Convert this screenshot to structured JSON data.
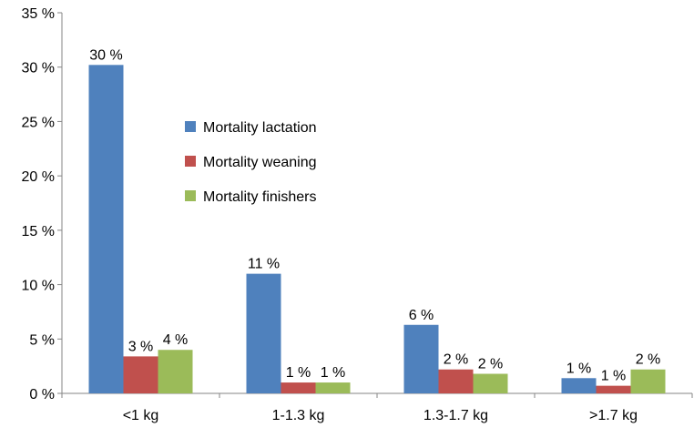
{
  "chart_data": {
    "type": "bar",
    "title": "",
    "xlabel": "",
    "ylabel": "",
    "ylim": [
      0,
      35
    ],
    "yticks": [
      "0 %",
      "5 %",
      "10 %",
      "15 %",
      "20 %",
      "25 %",
      "30 %",
      "35 %"
    ],
    "ytick_values": [
      0,
      5,
      10,
      15,
      20,
      25,
      30,
      35
    ],
    "grid": false,
    "legend_placement": "center-left inside plot",
    "categories": [
      "<1 kg",
      "1-1.3 kg",
      "1.3-1.7 kg",
      ">1.7 kg"
    ],
    "series": [
      {
        "name": "Mortality lactation",
        "color": "#4f81bd",
        "values": [
          30.2,
          11.0,
          6.3,
          1.4
        ],
        "labels": [
          "30 %",
          "11 %",
          "6 %",
          "1 %"
        ]
      },
      {
        "name": "Mortality weaning",
        "color": "#c0504d",
        "values": [
          3.4,
          1.0,
          2.2,
          0.7
        ],
        "labels": [
          "3 %",
          "1 %",
          "2 %",
          "1 %"
        ]
      },
      {
        "name": "Mortality finishers",
        "color": "#9bbb59",
        "values": [
          4.0,
          1.0,
          1.8,
          2.2
        ],
        "labels": [
          "4 %",
          "1 %",
          "2 %",
          "2 %"
        ]
      }
    ]
  }
}
